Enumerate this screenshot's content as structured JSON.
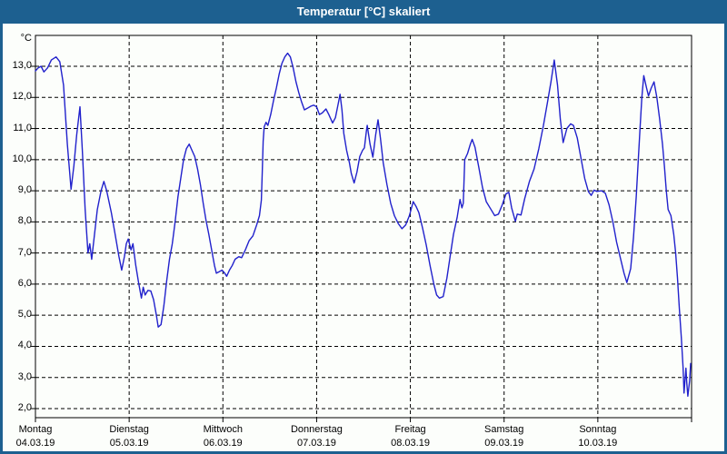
{
  "window": {
    "title": "Temperatur [°C] skaliert"
  },
  "chart_data": {
    "type": "line",
    "title": "Temperatur [°C] skaliert",
    "ylabel": "°C",
    "xlabel": "",
    "ylim": [
      1.7,
      14.0
    ],
    "grid": "dashed-black",
    "legend": "none",
    "line_color": "#2121cc",
    "frame_color": "#000000",
    "titlebar_color": "#1d6090",
    "background_color": "#fcfefb",
    "yticks": [
      {
        "value": 13,
        "label": "13,0"
      },
      {
        "value": 12,
        "label": "12,0"
      },
      {
        "value": 11,
        "label": "11,0"
      },
      {
        "value": 10,
        "label": "10,0"
      },
      {
        "value": 9,
        "label": "9,0"
      },
      {
        "value": 8,
        "label": "8,0"
      },
      {
        "value": 7,
        "label": "7,0"
      },
      {
        "value": 6,
        "label": "6,0"
      },
      {
        "value": 5,
        "label": "5,0"
      },
      {
        "value": 4,
        "label": "4,0"
      },
      {
        "value": 3,
        "label": "3,0"
      },
      {
        "value": 2,
        "label": "2,0"
      }
    ],
    "xticks": [
      {
        "day": "Montag",
        "date": "04.03.19"
      },
      {
        "day": "Dienstag",
        "date": "05.03.19"
      },
      {
        "day": "Mittwoch",
        "date": "06.03.19"
      },
      {
        "day": "Donnerstag",
        "date": "07.03.19"
      },
      {
        "day": "Freitag",
        "date": "08.03.19"
      },
      {
        "day": "Samstag",
        "date": "09.03.19"
      },
      {
        "day": "Sonntag",
        "date": "10.03.19"
      }
    ],
    "x_unit": "days_from_monday",
    "series": [
      {
        "name": "Temperatur",
        "points": [
          [
            0.0,
            12.85
          ],
          [
            0.03,
            12.95
          ],
          [
            0.06,
            13.0
          ],
          [
            0.09,
            12.82
          ],
          [
            0.13,
            12.95
          ],
          [
            0.17,
            13.2
          ],
          [
            0.22,
            13.3
          ],
          [
            0.26,
            13.15
          ],
          [
            0.3,
            12.4
          ],
          [
            0.34,
            10.5
          ],
          [
            0.38,
            9.05
          ],
          [
            0.41,
            9.8
          ],
          [
            0.44,
            10.8
          ],
          [
            0.475,
            11.7
          ],
          [
            0.5,
            10.3
          ],
          [
            0.53,
            8.4
          ],
          [
            0.56,
            7.0
          ],
          [
            0.58,
            7.3
          ],
          [
            0.6,
            6.8
          ],
          [
            0.63,
            7.6
          ],
          [
            0.66,
            8.4
          ],
          [
            0.7,
            9.0
          ],
          [
            0.73,
            9.3
          ],
          [
            0.76,
            9.0
          ],
          [
            0.81,
            8.3
          ],
          [
            0.85,
            7.6
          ],
          [
            0.89,
            6.9
          ],
          [
            0.92,
            6.45
          ],
          [
            0.95,
            6.9
          ],
          [
            0.97,
            7.3
          ],
          [
            0.99,
            7.45
          ],
          [
            1.02,
            7.1
          ],
          [
            1.04,
            7.3
          ],
          [
            1.07,
            6.6
          ],
          [
            1.1,
            6.05
          ],
          [
            1.13,
            5.55
          ],
          [
            1.15,
            5.9
          ],
          [
            1.17,
            5.65
          ],
          [
            1.2,
            5.8
          ],
          [
            1.23,
            5.78
          ],
          [
            1.26,
            5.5
          ],
          [
            1.29,
            5.0
          ],
          [
            1.31,
            4.62
          ],
          [
            1.34,
            4.7
          ],
          [
            1.37,
            5.3
          ],
          [
            1.4,
            6.1
          ],
          [
            1.43,
            6.8
          ],
          [
            1.46,
            7.3
          ],
          [
            1.49,
            8.0
          ],
          [
            1.52,
            8.8
          ],
          [
            1.55,
            9.4
          ],
          [
            1.58,
            10.0
          ],
          [
            1.61,
            10.35
          ],
          [
            1.64,
            10.5
          ],
          [
            1.67,
            10.3
          ],
          [
            1.7,
            10.1
          ],
          [
            1.73,
            9.7
          ],
          [
            1.76,
            9.2
          ],
          [
            1.79,
            8.6
          ],
          [
            1.82,
            8.05
          ],
          [
            1.85,
            7.6
          ],
          [
            1.88,
            7.1
          ],
          [
            1.91,
            6.6
          ],
          [
            1.93,
            6.35
          ],
          [
            1.96,
            6.4
          ],
          [
            1.99,
            6.45
          ],
          [
            2.02,
            6.35
          ],
          [
            2.04,
            6.25
          ],
          [
            2.07,
            6.45
          ],
          [
            2.1,
            6.6
          ],
          [
            2.13,
            6.8
          ],
          [
            2.17,
            6.88
          ],
          [
            2.2,
            6.85
          ],
          [
            2.24,
            7.1
          ],
          [
            2.28,
            7.4
          ],
          [
            2.32,
            7.55
          ],
          [
            2.36,
            7.9
          ],
          [
            2.39,
            8.2
          ],
          [
            2.41,
            8.7
          ],
          [
            2.42,
            9.6
          ],
          [
            2.43,
            10.6
          ],
          [
            2.44,
            11.05
          ],
          [
            2.46,
            11.2
          ],
          [
            2.48,
            11.1
          ],
          [
            2.51,
            11.45
          ],
          [
            2.54,
            11.9
          ],
          [
            2.57,
            12.3
          ],
          [
            2.6,
            12.75
          ],
          [
            2.63,
            13.1
          ],
          [
            2.66,
            13.3
          ],
          [
            2.69,
            13.42
          ],
          [
            2.72,
            13.3
          ],
          [
            2.75,
            12.95
          ],
          [
            2.78,
            12.5
          ],
          [
            2.81,
            12.15
          ],
          [
            2.84,
            11.85
          ],
          [
            2.87,
            11.6
          ],
          [
            2.9,
            11.65
          ],
          [
            2.94,
            11.72
          ],
          [
            2.97,
            11.75
          ],
          [
            3.0,
            11.7
          ],
          [
            3.03,
            11.45
          ],
          [
            3.06,
            11.5
          ],
          [
            3.1,
            11.63
          ],
          [
            3.13,
            11.45
          ],
          [
            3.17,
            11.18
          ],
          [
            3.2,
            11.35
          ],
          [
            3.23,
            11.8
          ],
          [
            3.25,
            12.1
          ],
          [
            3.27,
            11.6
          ],
          [
            3.29,
            10.85
          ],
          [
            3.32,
            10.3
          ],
          [
            3.35,
            9.9
          ],
          [
            3.37,
            9.55
          ],
          [
            3.4,
            9.25
          ],
          [
            3.43,
            9.6
          ],
          [
            3.46,
            10.1
          ],
          [
            3.49,
            10.3
          ],
          [
            3.51,
            10.38
          ],
          [
            3.53,
            10.9
          ],
          [
            3.54,
            11.1
          ],
          [
            3.57,
            10.5
          ],
          [
            3.6,
            10.08
          ],
          [
            3.63,
            10.8
          ],
          [
            3.655,
            11.28
          ],
          [
            3.68,
            10.7
          ],
          [
            3.71,
            9.9
          ],
          [
            3.75,
            9.2
          ],
          [
            3.79,
            8.6
          ],
          [
            3.83,
            8.2
          ],
          [
            3.87,
            7.95
          ],
          [
            3.91,
            7.78
          ],
          [
            3.95,
            7.9
          ],
          [
            3.99,
            8.2
          ],
          [
            4.03,
            8.65
          ],
          [
            4.06,
            8.5
          ],
          [
            4.09,
            8.3
          ],
          [
            4.13,
            7.8
          ],
          [
            4.17,
            7.25
          ],
          [
            4.21,
            6.6
          ],
          [
            4.25,
            6.0
          ],
          [
            4.28,
            5.65
          ],
          [
            4.31,
            5.55
          ],
          [
            4.35,
            5.6
          ],
          [
            4.39,
            6.2
          ],
          [
            4.43,
            7.0
          ],
          [
            4.46,
            7.6
          ],
          [
            4.5,
            8.15
          ],
          [
            4.53,
            8.72
          ],
          [
            4.55,
            8.45
          ],
          [
            4.565,
            8.6
          ],
          [
            4.58,
            10.0
          ],
          [
            4.61,
            10.2
          ],
          [
            4.64,
            10.5
          ],
          [
            4.66,
            10.65
          ],
          [
            4.69,
            10.4
          ],
          [
            4.73,
            9.75
          ],
          [
            4.77,
            9.1
          ],
          [
            4.81,
            8.65
          ],
          [
            4.86,
            8.4
          ],
          [
            4.9,
            8.2
          ],
          [
            4.94,
            8.25
          ],
          [
            4.98,
            8.55
          ],
          [
            5.02,
            8.9
          ],
          [
            5.05,
            8.95
          ],
          [
            5.08,
            8.45
          ],
          [
            5.12,
            8.02
          ],
          [
            5.14,
            8.25
          ],
          [
            5.18,
            8.22
          ],
          [
            5.22,
            8.75
          ],
          [
            5.27,
            9.3
          ],
          [
            5.32,
            9.7
          ],
          [
            5.37,
            10.35
          ],
          [
            5.42,
            11.1
          ],
          [
            5.46,
            11.8
          ],
          [
            5.5,
            12.5
          ],
          [
            5.535,
            13.2
          ],
          [
            5.57,
            12.4
          ],
          [
            5.6,
            11.3
          ],
          [
            5.63,
            10.55
          ],
          [
            5.67,
            11.0
          ],
          [
            5.71,
            11.15
          ],
          [
            5.74,
            11.1
          ],
          [
            5.78,
            10.7
          ],
          [
            5.82,
            10.05
          ],
          [
            5.86,
            9.4
          ],
          [
            5.9,
            8.97
          ],
          [
            5.93,
            8.85
          ],
          [
            5.96,
            9.02
          ],
          [
            5.99,
            8.98
          ],
          [
            6.04,
            9.0
          ],
          [
            6.08,
            8.92
          ],
          [
            6.12,
            8.55
          ],
          [
            6.16,
            8.0
          ],
          [
            6.2,
            7.35
          ],
          [
            6.24,
            6.85
          ],
          [
            6.28,
            6.35
          ],
          [
            6.31,
            6.05
          ],
          [
            6.35,
            6.5
          ],
          [
            6.38,
            7.5
          ],
          [
            6.41,
            8.8
          ],
          [
            6.43,
            9.9
          ],
          [
            6.45,
            11.0
          ],
          [
            6.47,
            12.0
          ],
          [
            6.49,
            12.7
          ],
          [
            6.52,
            12.3
          ],
          [
            6.54,
            12.05
          ],
          [
            6.57,
            12.3
          ],
          [
            6.6,
            12.5
          ],
          [
            6.63,
            12.0
          ],
          [
            6.66,
            11.3
          ],
          [
            6.69,
            10.5
          ],
          [
            6.71,
            9.8
          ],
          [
            6.73,
            9.0
          ],
          [
            6.75,
            8.4
          ],
          [
            6.78,
            8.2
          ],
          [
            6.81,
            7.6
          ],
          [
            6.83,
            7.0
          ],
          [
            6.85,
            6.2
          ],
          [
            6.87,
            5.2
          ],
          [
            6.89,
            4.3
          ],
          [
            6.91,
            3.3
          ],
          [
            6.92,
            2.5
          ],
          [
            6.94,
            3.3
          ],
          [
            6.95,
            2.8
          ],
          [
            6.96,
            2.4
          ],
          [
            6.98,
            2.9
          ],
          [
            6.99,
            3.45
          ]
        ]
      }
    ]
  }
}
